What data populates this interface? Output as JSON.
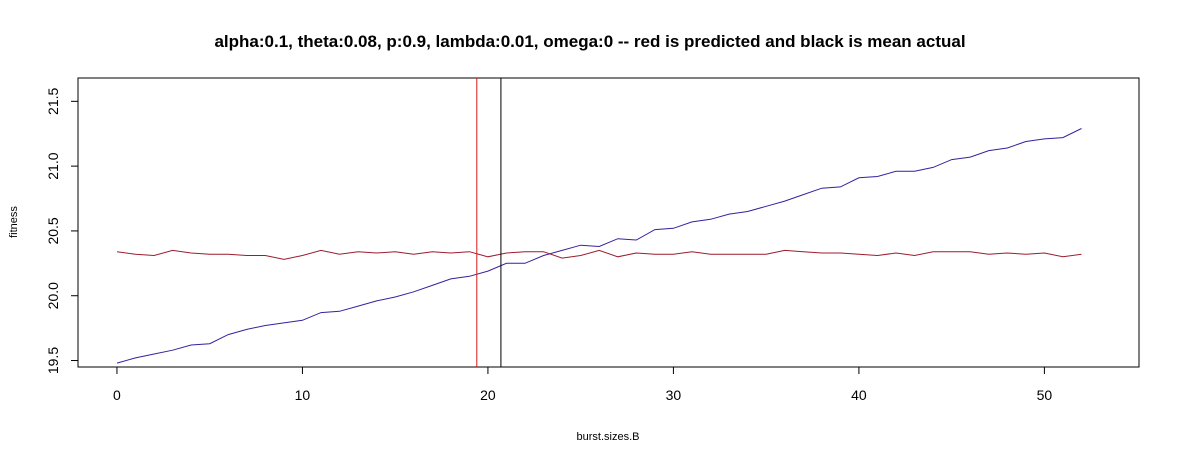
{
  "chart_data": {
    "type": "line",
    "title": "alpha:0.1, theta:0.08, p:0.9, lambda:0.01, omega:0 -- red is predicted and black is mean actual",
    "xlabel": "burst.sizes.B",
    "ylabel": "fitness",
    "xlim": [
      -2.1,
      55.1
    ],
    "ylim": [
      19.45,
      21.68
    ],
    "xticks": [
      0,
      10,
      20,
      30,
      40,
      50
    ],
    "yticks": [
      19.5,
      20.0,
      20.5,
      21.0,
      21.5
    ],
    "grid": false,
    "x": [
      0,
      1,
      2,
      3,
      4,
      5,
      6,
      7,
      8,
      9,
      10,
      11,
      12,
      13,
      14,
      15,
      16,
      17,
      18,
      19,
      20,
      21,
      22,
      23,
      24,
      25,
      26,
      27,
      28,
      29,
      30,
      31,
      32,
      33,
      34,
      35,
      36,
      37,
      38,
      39,
      40,
      41,
      42,
      43,
      44,
      45,
      46,
      47,
      48,
      49,
      50,
      51,
      52
    ],
    "series": [
      {
        "color": "#3a1f9e",
        "values": [
          19.48,
          19.52,
          19.55,
          19.58,
          19.62,
          19.63,
          19.7,
          19.74,
          19.77,
          19.79,
          19.81,
          19.87,
          19.88,
          19.92,
          19.96,
          19.99,
          20.03,
          20.08,
          20.13,
          20.15,
          20.19,
          20.25,
          20.25,
          20.31,
          20.35,
          20.39,
          20.38,
          20.44,
          20.43,
          20.51,
          20.52,
          20.57,
          20.59,
          20.63,
          20.65,
          20.69,
          20.73,
          20.78,
          20.83,
          20.84,
          20.91,
          20.92,
          20.96,
          20.96,
          20.99,
          21.05,
          21.07,
          21.12,
          21.14,
          21.19,
          21.21,
          21.22,
          21.29
        ]
      },
      {
        "color": "#9b1c2e",
        "values": [
          20.34,
          20.32,
          20.31,
          20.35,
          20.33,
          20.32,
          20.32,
          20.31,
          20.31,
          20.28,
          20.31,
          20.35,
          20.32,
          20.34,
          20.33,
          20.34,
          20.32,
          20.34,
          20.33,
          20.34,
          20.3,
          20.33,
          20.34,
          20.34,
          20.29,
          20.31,
          20.35,
          20.3,
          20.33,
          20.32,
          20.32,
          20.34,
          20.32,
          20.32,
          20.32,
          20.32,
          20.35,
          20.34,
          20.33,
          20.33,
          20.32,
          20.31,
          20.33,
          20.31,
          20.34,
          20.34,
          20.34,
          20.32,
          20.33,
          20.32,
          20.33,
          20.3,
          20.32
        ]
      }
    ],
    "vlines": [
      {
        "x": 19.4,
        "color": "#dd1a1a"
      },
      {
        "x": 20.7,
        "color": "#000000"
      }
    ]
  }
}
